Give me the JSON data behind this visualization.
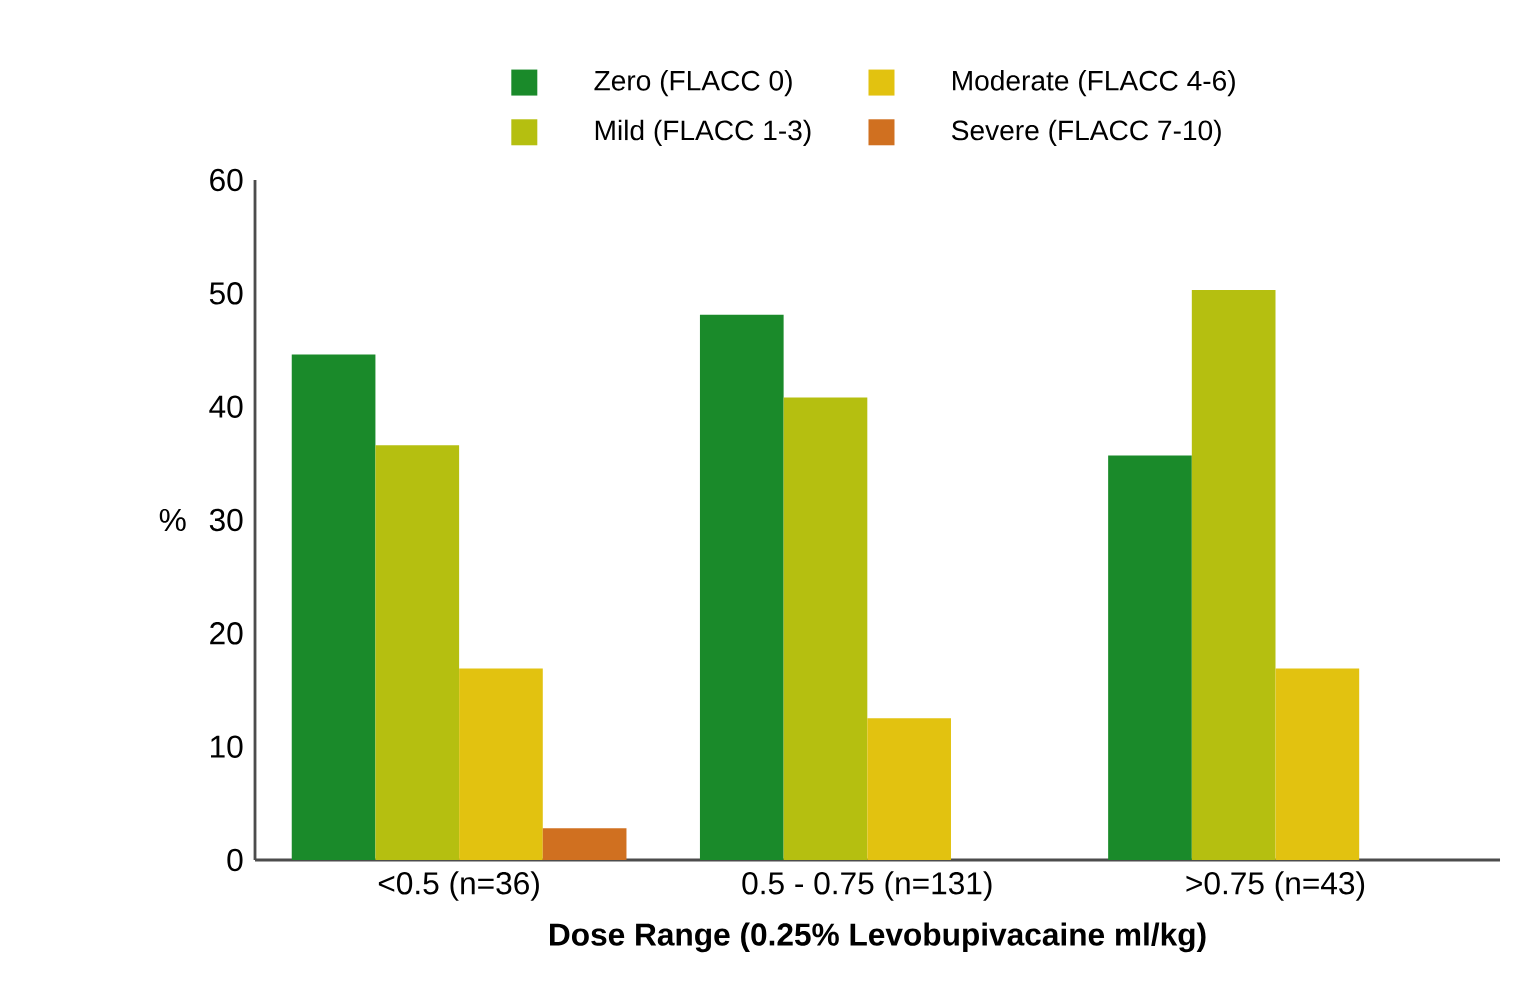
{
  "chart_data": {
    "type": "bar",
    "xlabel": "Dose Range (0.25% Levobupivacaine ml/kg)",
    "ylabel": "%",
    "categories": [
      "<0.5 (n=36)",
      "0.5 - 0.75 (n=131)",
      ">0.75 (n=43)"
    ],
    "series": [
      {
        "name": "Zero (FLACC 0)",
        "color": "#1a8a2a",
        "values": [
          44.6,
          48.1,
          35.7
        ]
      },
      {
        "name": "Mild (FLACC 1-3)",
        "color": "#b5bf10",
        "values": [
          36.6,
          40.8,
          50.3
        ]
      },
      {
        "name": "Moderate (FLACC 4-6)",
        "color": "#e2c210",
        "values": [
          16.9,
          12.5,
          16.9
        ]
      },
      {
        "name": "Severe (FLACC 7-10)",
        "color": "#d07020",
        "values": [
          2.8,
          0,
          0
        ]
      }
    ],
    "ylim": [
      0,
      60
    ],
    "yticks": [
      0,
      10,
      20,
      30,
      40,
      50,
      60
    ],
    "legend": "top",
    "grid": false
  }
}
